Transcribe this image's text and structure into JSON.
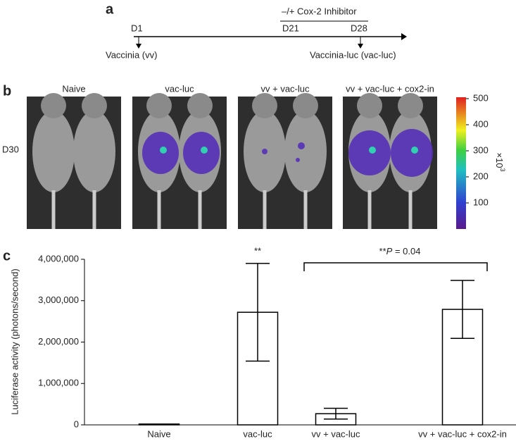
{
  "panel_a": {
    "label": "a",
    "inhibitor": "–/+ Cox-2 Inhibitor",
    "d1": "D1",
    "d21": "D21",
    "d28": "D28",
    "vv": "Vaccinia (vv)",
    "vac_luc": "Vaccinia-luc (vac-luc)"
  },
  "panel_b": {
    "label": "b",
    "row": "D30",
    "groups": [
      "Naive",
      "vac-luc",
      "vv + vac-luc",
      "vv + vac-luc + cox2-in"
    ],
    "colorbar": {
      "lim": [
        0,
        500
      ],
      "ticks": [
        100,
        200,
        300,
        400,
        500
      ],
      "unit": "×10",
      "unit_exp": "3"
    }
  },
  "panel_c": {
    "label": "c"
  },
  "chart_data": {
    "type": "bar",
    "y_label": "Luciferase activity (photons/second)",
    "categories": [
      "Naive",
      "vac-luc",
      "vv + vac-luc",
      "vv + vac-luc + cox2-in"
    ],
    "values": [
      20000,
      2720000,
      270000,
      2790000
    ],
    "errors": [
      0,
      1180000,
      130000,
      700000
    ],
    "color": "#ffffff",
    "ylim": [
      0,
      4000000
    ],
    "yticks": [
      0,
      {
        "value": 1000000,
        "label": "1,000,000"
      },
      {
        "value": 2000000,
        "label": "2,000,000"
      },
      {
        "value": 3000000,
        "label": "3,000,000"
      },
      {
        "value": 4000000,
        "label": "4,000,000"
      }
    ],
    "star": "**",
    "sig_prefix": "**",
    "sig_italic": "P",
    "sig_rest": " = 0.04"
  }
}
